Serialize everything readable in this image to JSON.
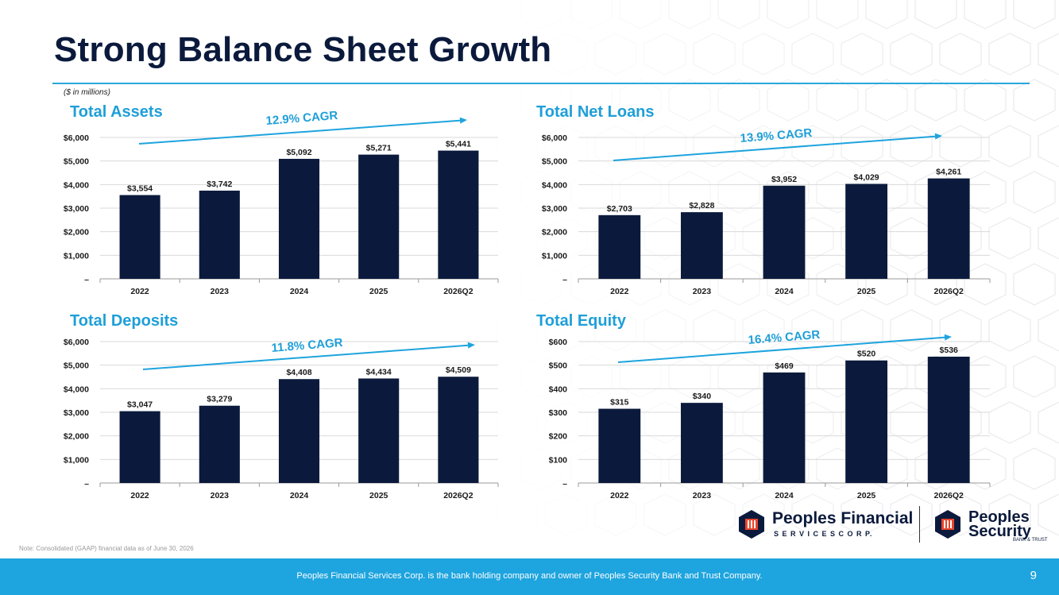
{
  "page": {
    "title": "Strong Balance Sheet Growth",
    "units_note": "($ in millions)",
    "footnote": "Note: Consolidated (GAAP) financial data as of June 30, 2026",
    "footer_text": "Peoples Financial Services Corp. is the bank holding company and owner of Peoples Security Bank and Trust Company.",
    "page_number": "9",
    "logo_primary": {
      "line1": "Peoples Financial",
      "line2": "S E R V I C E S   C O R P."
    },
    "logo_secondary": {
      "line1": "Peoples",
      "line2": "Security",
      "line3": "BANK & TRUST"
    }
  },
  "colors": {
    "bar": "#0b1a3c",
    "accent": "#1ea4de",
    "title_blue": "#1e9fd8",
    "title_dark": "#0b1a3c"
  },
  "chart_data": [
    {
      "type": "bar",
      "title": "Total Assets",
      "annotation": "12.9% CAGR",
      "categories": [
        "2022",
        "2023",
        "2024",
        "2025",
        "2026Q2"
      ],
      "values": [
        3554,
        3742,
        5092,
        5271,
        5441
      ],
      "value_labels": [
        "$3,554",
        "$3,742",
        "$5,092",
        "$5,271",
        "$5,441"
      ],
      "yticks": [
        0,
        1000,
        2000,
        3000,
        4000,
        5000,
        6000
      ],
      "ytick_labels": [
        "–",
        "$1,000",
        "$2,000",
        "$3,000",
        "$4,000",
        "$5,000",
        "$6,000"
      ],
      "ylim": [
        0,
        6000
      ],
      "grid": true
    },
    {
      "type": "bar",
      "title": "Total Net Loans",
      "annotation": "13.9% CAGR",
      "categories": [
        "2022",
        "2023",
        "2024",
        "2025",
        "2026Q2"
      ],
      "values": [
        2703,
        2828,
        3952,
        4029,
        4261
      ],
      "value_labels": [
        "$2,703",
        "$2,828",
        "$3,952",
        "$4,029",
        "$4,261"
      ],
      "yticks": [
        0,
        1000,
        2000,
        3000,
        4000,
        5000,
        6000
      ],
      "ytick_labels": [
        "–",
        "$1,000",
        "$2,000",
        "$3,000",
        "$4,000",
        "$5,000",
        "$6,000"
      ],
      "ylim": [
        0,
        6000
      ],
      "grid": true
    },
    {
      "type": "bar",
      "title": "Total Deposits",
      "annotation": "11.8% CAGR",
      "categories": [
        "2022",
        "2023",
        "2024",
        "2025",
        "2026Q2"
      ],
      "values": [
        3047,
        3279,
        4408,
        4434,
        4509
      ],
      "value_labels": [
        "$3,047",
        "$3,279",
        "$4,408",
        "$4,434",
        "$4,509"
      ],
      "yticks": [
        0,
        1000,
        2000,
        3000,
        4000,
        5000,
        6000
      ],
      "ytick_labels": [
        "–",
        "$1,000",
        "$2,000",
        "$3,000",
        "$4,000",
        "$5,000",
        "$6,000"
      ],
      "ylim": [
        0,
        6000
      ],
      "grid": true
    },
    {
      "type": "bar",
      "title": "Total Equity",
      "annotation": "16.4% CAGR",
      "categories": [
        "2022",
        "2023",
        "2024",
        "2025",
        "2026Q2"
      ],
      "values": [
        315,
        340,
        469,
        520,
        536
      ],
      "value_labels": [
        "$315",
        "$340",
        "$469",
        "$520",
        "$536"
      ],
      "yticks": [
        0,
        100,
        200,
        300,
        400,
        500,
        600
      ],
      "ytick_labels": [
        "–",
        "$100",
        "$200",
        "$300",
        "$400",
        "$500",
        "$600"
      ],
      "ylim": [
        0,
        600
      ],
      "grid": true
    }
  ]
}
